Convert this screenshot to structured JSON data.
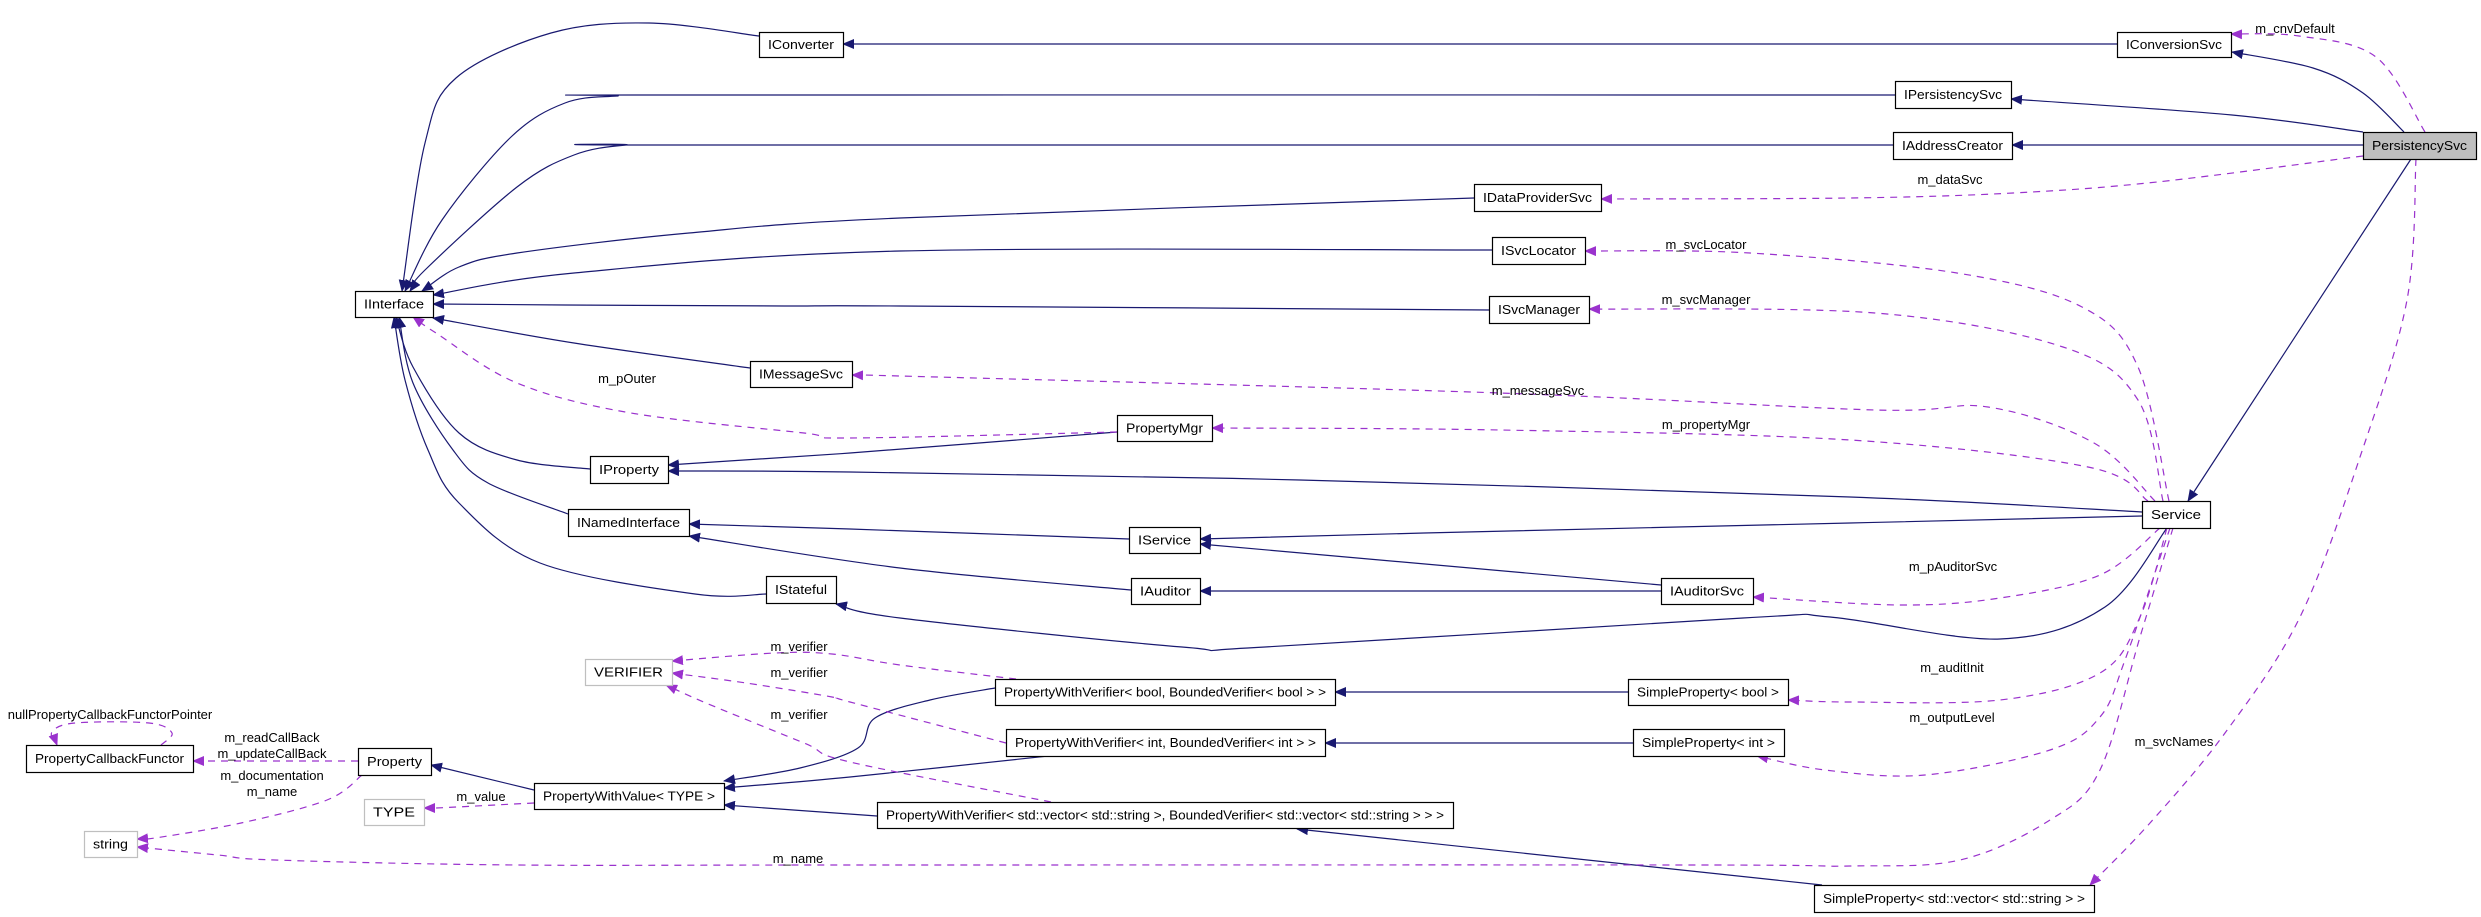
{
  "colors": {
    "inheritance": "#191970",
    "usage": "#9a32cd",
    "focus_fill": "#bfbfbf",
    "undocumented_border": "#bfbfbf"
  },
  "nodes": [
    {
      "id": "IConverter",
      "label": "IConverter",
      "style": "normal"
    },
    {
      "id": "IConversionSvc",
      "label": "IConversionSvc",
      "style": "normal"
    },
    {
      "id": "IPersistencySvc",
      "label": "IPersistencySvc",
      "style": "normal"
    },
    {
      "id": "IAddressCreator",
      "label": "IAddressCreator",
      "style": "normal"
    },
    {
      "id": "PersistencySvc",
      "label": "PersistencySvc",
      "style": "focus"
    },
    {
      "id": "IDataProviderSvc",
      "label": "IDataProviderSvc",
      "style": "normal"
    },
    {
      "id": "ISvcLocator",
      "label": "ISvcLocator",
      "style": "normal"
    },
    {
      "id": "ISvcManager",
      "label": "ISvcManager",
      "style": "normal"
    },
    {
      "id": "IInterface",
      "label": "IInterface",
      "style": "normal"
    },
    {
      "id": "IMessageSvc",
      "label": "IMessageSvc",
      "style": "normal"
    },
    {
      "id": "PropertyMgr",
      "label": "PropertyMgr",
      "style": "normal"
    },
    {
      "id": "IProperty",
      "label": "IProperty",
      "style": "normal"
    },
    {
      "id": "INamedInterface",
      "label": "INamedInterface",
      "style": "normal"
    },
    {
      "id": "IService",
      "label": "IService",
      "style": "normal"
    },
    {
      "id": "Service",
      "label": "Service",
      "style": "normal"
    },
    {
      "id": "IAuditor",
      "label": "IAuditor",
      "style": "normal"
    },
    {
      "id": "IAuditorSvc",
      "label": "IAuditorSvc",
      "style": "normal"
    },
    {
      "id": "IStateful",
      "label": "IStateful",
      "style": "normal"
    },
    {
      "id": "VERIFIER",
      "label": "VERIFIER",
      "style": "undocumented"
    },
    {
      "id": "PWVbool",
      "label": "PropertyWithVerifier< bool, BoundedVerifier< bool > >",
      "style": "normal"
    },
    {
      "id": "SPbool",
      "label": "SimpleProperty< bool >",
      "style": "normal"
    },
    {
      "id": "PCF",
      "label": "PropertyCallbackFunctor",
      "style": "normal"
    },
    {
      "id": "Property",
      "label": "Property",
      "style": "normal"
    },
    {
      "id": "PWVint",
      "label": "PropertyWithVerifier< int, BoundedVerifier< int > >",
      "style": "normal"
    },
    {
      "id": "SPint",
      "label": "SimpleProperty< int >",
      "style": "normal"
    },
    {
      "id": "PWV",
      "label": "PropertyWithValue< TYPE >",
      "style": "normal"
    },
    {
      "id": "TYPE",
      "label": "TYPE",
      "style": "undocumented"
    },
    {
      "id": "PWVvec",
      "label": "PropertyWithVerifier< std::vector< std::string >, BoundedVerifier< std::vector< std::string > > >",
      "style": "normal"
    },
    {
      "id": "string",
      "label": "string",
      "style": "undocumented"
    },
    {
      "id": "SPvec",
      "label": "SimpleProperty< std::vector< std::string > >",
      "style": "normal"
    }
  ],
  "edges": [
    {
      "from": "IConverter",
      "to": "IInterface",
      "kind": "inherit"
    },
    {
      "from": "IConversionSvc",
      "to": "IConverter",
      "kind": "inherit"
    },
    {
      "from": "PersistencySvc",
      "to": "IConversionSvc",
      "kind": "inherit"
    },
    {
      "from": "IPersistencySvc",
      "to": "IInterface",
      "kind": "inherit"
    },
    {
      "from": "PersistencySvc",
      "to": "IPersistencySvc",
      "kind": "inherit"
    },
    {
      "from": "IAddressCreator",
      "to": "IInterface",
      "kind": "inherit"
    },
    {
      "from": "PersistencySvc",
      "to": "IAddressCreator",
      "kind": "inherit"
    },
    {
      "from": "IDataProviderSvc",
      "to": "IInterface",
      "kind": "inherit"
    },
    {
      "from": "ISvcLocator",
      "to": "IInterface",
      "kind": "inherit"
    },
    {
      "from": "ISvcManager",
      "to": "IInterface",
      "kind": "inherit"
    },
    {
      "from": "IMessageSvc",
      "to": "IInterface",
      "kind": "inherit"
    },
    {
      "from": "IProperty",
      "to": "IInterface",
      "kind": "inherit"
    },
    {
      "from": "PropertyMgr",
      "to": "IProperty",
      "kind": "inherit"
    },
    {
      "from": "Service",
      "to": "IProperty",
      "kind": "inherit"
    },
    {
      "from": "INamedInterface",
      "to": "IInterface",
      "kind": "inherit"
    },
    {
      "from": "IService",
      "to": "INamedInterface",
      "kind": "inherit"
    },
    {
      "from": "Service",
      "to": "IService",
      "kind": "inherit"
    },
    {
      "from": "IAuditor",
      "to": "INamedInterface",
      "kind": "inherit"
    },
    {
      "from": "IAuditorSvc",
      "to": "IService",
      "kind": "inherit"
    },
    {
      "from": "IAuditorSvc",
      "to": "IAuditor",
      "kind": "inherit"
    },
    {
      "from": "Service",
      "to": "IStateful",
      "kind": "inherit"
    },
    {
      "from": "IStateful",
      "to": "IInterface",
      "kind": "inherit"
    },
    {
      "from": "PersistencySvc",
      "to": "Service",
      "kind": "inherit"
    },
    {
      "from": "PWV",
      "to": "Property",
      "kind": "inherit"
    },
    {
      "from": "PWVbool",
      "to": "PWV",
      "kind": "inherit"
    },
    {
      "from": "PWVint",
      "to": "PWV",
      "kind": "inherit"
    },
    {
      "from": "PWVvec",
      "to": "PWV",
      "kind": "inherit"
    },
    {
      "from": "SPbool",
      "to": "PWVbool",
      "kind": "inherit"
    },
    {
      "from": "SPint",
      "to": "PWVint",
      "kind": "inherit"
    },
    {
      "from": "SPvec",
      "to": "PWVvec",
      "kind": "inherit"
    },
    {
      "from": "PersistencySvc",
      "to": "IConversionSvc",
      "kind": "use",
      "label": [
        "m_cnvDefault"
      ]
    },
    {
      "from": "PersistencySvc",
      "to": "IDataProviderSvc",
      "kind": "use",
      "label": [
        "m_dataSvc"
      ]
    },
    {
      "from": "Service",
      "to": "ISvcLocator",
      "kind": "use",
      "label": [
        "m_svcLocator"
      ]
    },
    {
      "from": "Service",
      "to": "ISvcManager",
      "kind": "use",
      "label": [
        "m_svcManager"
      ]
    },
    {
      "from": "Service",
      "to": "IMessageSvc",
      "kind": "use",
      "label": [
        "m_messageSvc"
      ]
    },
    {
      "from": "Service",
      "to": "PropertyMgr",
      "kind": "use",
      "label": [
        "m_propertyMgr"
      ]
    },
    {
      "from": "PropertyMgr",
      "to": "IInterface",
      "kind": "use",
      "label": [
        "m_pOuter"
      ]
    },
    {
      "from": "Service",
      "to": "IAuditorSvc",
      "kind": "use",
      "label": [
        "m_pAuditorSvc"
      ]
    },
    {
      "from": "Service",
      "to": "SPbool",
      "kind": "use",
      "label": [
        "m_auditInit"
      ]
    },
    {
      "from": "Service",
      "to": "SPint",
      "kind": "use",
      "label": [
        "m_outputLevel"
      ]
    },
    {
      "from": "Service",
      "to": "string",
      "kind": "use",
      "label": [
        "m_name"
      ]
    },
    {
      "from": "Property",
      "to": "string",
      "kind": "use",
      "label": [
        "m_documentation",
        "m_name"
      ]
    },
    {
      "from": "Property",
      "to": "PCF",
      "kind": "use",
      "label": [
        "m_readCallBack",
        "m_updateCallBack"
      ]
    },
    {
      "from": "PCF",
      "to": "PCF",
      "kind": "use",
      "label": [
        "nullPropertyCallbackFunctorPointer"
      ]
    },
    {
      "from": "PWV",
      "to": "TYPE",
      "kind": "use",
      "label": [
        "m_value"
      ]
    },
    {
      "from": "PWVbool",
      "to": "VERIFIER",
      "kind": "use",
      "label": [
        "m_verifier"
      ]
    },
    {
      "from": "PWVint",
      "to": "VERIFIER",
      "kind": "use",
      "label": [
        "m_verifier"
      ]
    },
    {
      "from": "PWVvec",
      "to": "VERIFIER",
      "kind": "use",
      "label": [
        "m_verifier"
      ]
    },
    {
      "from": "PersistencySvc",
      "to": "SPvec",
      "kind": "use",
      "label": [
        "m_svcNames"
      ]
    }
  ]
}
